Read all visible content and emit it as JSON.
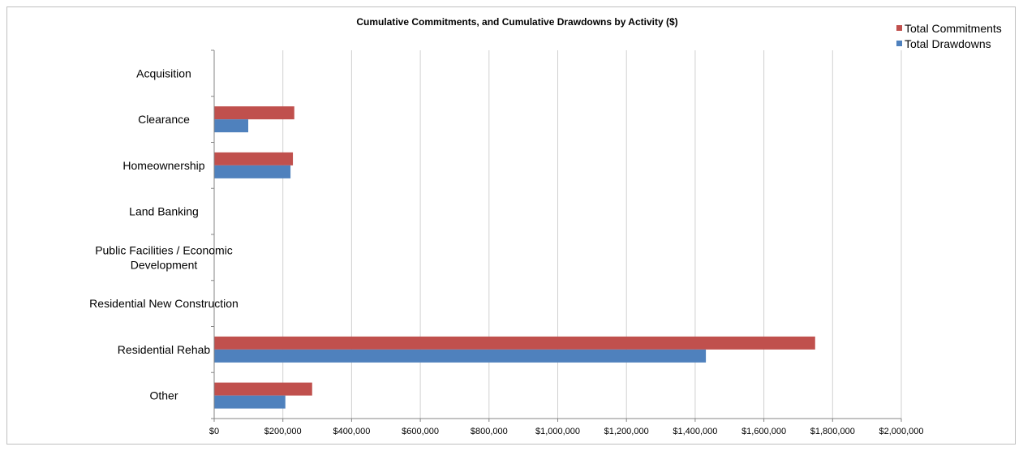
{
  "chart_data": {
    "type": "bar",
    "orientation": "horizontal",
    "title": "Cumulative Commitments, and Cumulative Drawdowns by Activity ($)",
    "categories": [
      [
        "Acquisition"
      ],
      [
        "Clearance"
      ],
      [
        "Homeownership"
      ],
      [
        "Land Banking"
      ],
      [
        "Public Facilities / Economic",
        "Development"
      ],
      [
        "Residential New Construction"
      ],
      [
        "Residential Rehab"
      ],
      [
        "Other"
      ]
    ],
    "series": [
      {
        "name": "Total Commitments",
        "color": "#c0504d",
        "values": [
          0,
          232000,
          228000,
          0,
          0,
          0,
          1748000,
          284000
        ]
      },
      {
        "name": "Total Drawdowns",
        "color": "#4f81bd",
        "values": [
          0,
          98000,
          221000,
          0,
          0,
          0,
          1430000,
          206000
        ]
      }
    ],
    "xlim": [
      0,
      2000000
    ],
    "x_ticks": [
      "$0",
      "$200,000",
      "$400,000",
      "$600,000",
      "$800,000",
      "$1,000,000",
      "$1,200,000",
      "$1,400,000",
      "$1,600,000",
      "$1,800,000",
      "$2,000,000"
    ],
    "grid": true,
    "legend_position": "top-right"
  }
}
